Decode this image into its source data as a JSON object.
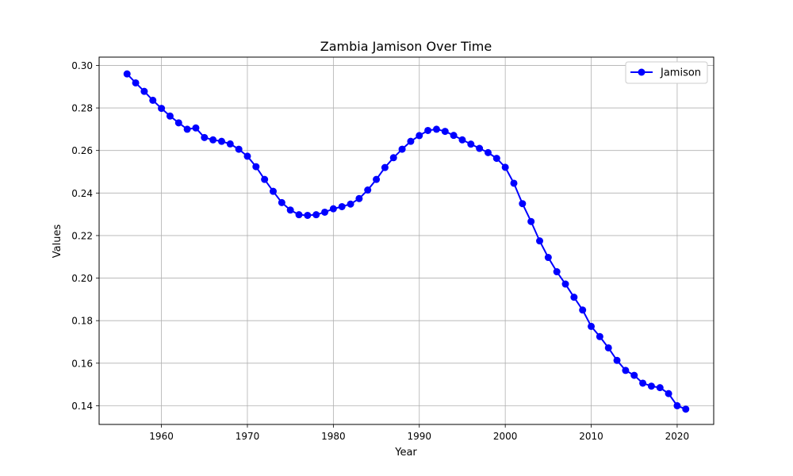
{
  "chart_data": {
    "type": "line",
    "title": "Zambia Jamison Over Time",
    "xlabel": "Year",
    "ylabel": "Values",
    "xlim": [
      1952.75,
      2024.25
    ],
    "ylim": [
      0.1312,
      0.3039
    ],
    "x_ticks": [
      1960,
      1970,
      1980,
      1990,
      2000,
      2010,
      2020
    ],
    "y_ticks": [
      0.14,
      0.16,
      0.18,
      0.2,
      0.22,
      0.24,
      0.26,
      0.28,
      0.3
    ],
    "y_tick_labels": [
      "0.14",
      "0.16",
      "0.18",
      "0.20",
      "0.22",
      "0.24",
      "0.26",
      "0.28",
      "0.30"
    ],
    "grid": true,
    "legend_position": "top-right",
    "series": [
      {
        "name": "Jamison",
        "color": "#0000ff",
        "marker": "circle",
        "x": [
          1956,
          1957,
          1958,
          1959,
          1960,
          1961,
          1962,
          1963,
          1964,
          1965,
          1966,
          1967,
          1968,
          1969,
          1970,
          1971,
          1972,
          1973,
          1974,
          1975,
          1976,
          1977,
          1978,
          1979,
          1980,
          1981,
          1982,
          1983,
          1984,
          1985,
          1986,
          1987,
          1988,
          1989,
          1990,
          1991,
          1992,
          1993,
          1994,
          1995,
          1996,
          1997,
          1998,
          1999,
          2000,
          2001,
          2002,
          2003,
          2004,
          2005,
          2006,
          2007,
          2008,
          2009,
          2010,
          2011,
          2012,
          2013,
          2014,
          2015,
          2016,
          2017,
          2018,
          2019,
          2020,
          2021
        ],
        "y": [
          0.296,
          0.2918,
          0.2878,
          0.2836,
          0.2798,
          0.2762,
          0.273,
          0.27,
          0.2706,
          0.2661,
          0.265,
          0.2643,
          0.2631,
          0.2606,
          0.2573,
          0.2524,
          0.2464,
          0.2408,
          0.2355,
          0.232,
          0.2298,
          0.2295,
          0.2298,
          0.231,
          0.2326,
          0.2336,
          0.2348,
          0.2374,
          0.2414,
          0.2464,
          0.252,
          0.2566,
          0.2606,
          0.2643,
          0.267,
          0.2694,
          0.27,
          0.269,
          0.2671,
          0.265,
          0.263,
          0.261,
          0.259,
          0.2563,
          0.2521,
          0.2446,
          0.235,
          0.2266,
          0.2175,
          0.2097,
          0.203,
          0.1972,
          0.191,
          0.185,
          0.1773,
          0.1725,
          0.1672,
          0.1613,
          0.1566,
          0.1543,
          0.1506,
          0.1492,
          0.1485,
          0.1457,
          0.14,
          0.1384
        ]
      }
    ]
  }
}
